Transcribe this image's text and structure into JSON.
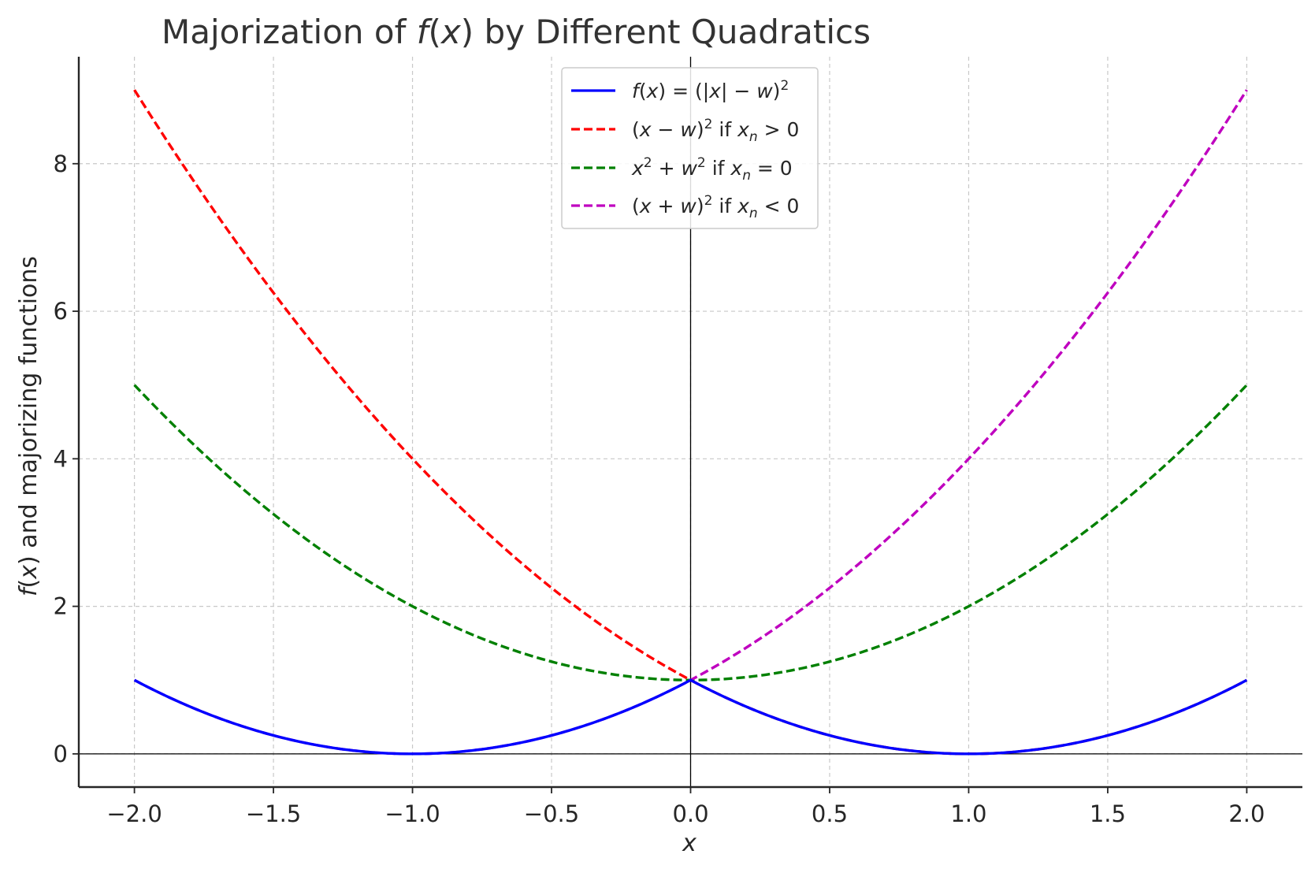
{
  "chart_data": {
    "type": "line",
    "title": "Majorization of f(x) by Different Quadratics",
    "xlabel": "x",
    "ylabel": "f(x) and majorizing functions",
    "xlim": [
      -2.2,
      2.2
    ],
    "ylim": [
      -0.45,
      9.45
    ],
    "x_ticks": [
      -2.0,
      -1.5,
      -1.0,
      -0.5,
      0.0,
      0.5,
      1.0,
      1.5,
      2.0
    ],
    "x_tick_labels": [
      "−2.0",
      "−1.5",
      "−1.0",
      "−0.5",
      "0.0",
      "0.5",
      "1.0",
      "1.5",
      "2.0"
    ],
    "y_ticks": [
      0,
      2,
      4,
      6,
      8
    ],
    "y_tick_labels": [
      "0",
      "2",
      "4",
      "6",
      "8"
    ],
    "grid": true,
    "legend_position": "top-center",
    "x": [
      -2.0,
      -1.75,
      -1.5,
      -1.25,
      -1.0,
      -0.75,
      -0.5,
      -0.25,
      0.0,
      0.25,
      0.5,
      0.75,
      1.0,
      1.25,
      1.5,
      1.75,
      2.0
    ],
    "series": [
      {
        "name": "f(x) = (|x| − w)²",
        "color": "#0000ff",
        "style": "solid",
        "values": [
          1.0,
          0.5625,
          0.25,
          0.0625,
          0.0,
          0.0625,
          0.25,
          0.5625,
          1.0,
          0.5625,
          0.25,
          0.0625,
          0.0,
          0.0625,
          0.25,
          0.5625,
          1.0
        ]
      },
      {
        "name": "(x − w)² if x_n > 0",
        "color": "#ff0000",
        "style": "dashed",
        "values": [
          9.0,
          7.5625,
          6.25,
          5.0625,
          4.0,
          3.0625,
          2.25,
          1.5625,
          1.0,
          0.5625,
          0.25,
          0.0625,
          0.0,
          0.0625,
          0.25,
          0.5625,
          1.0
        ]
      },
      {
        "name": "x² + w² if x_n = 0",
        "color": "#008000",
        "style": "dashed",
        "values": [
          5.0,
          4.0625,
          3.25,
          2.5625,
          2.0,
          1.5625,
          1.25,
          1.0625,
          1.0,
          1.0625,
          1.25,
          1.5625,
          2.0,
          2.5625,
          3.25,
          4.0625,
          5.0
        ]
      },
      {
        "name": "(x + w)² if x_n < 0",
        "color": "#bf00bf",
        "style": "dashed",
        "values": [
          1.0,
          0.5625,
          0.25,
          0.0625,
          0.0,
          0.0625,
          0.25,
          0.5625,
          1.0,
          1.5625,
          2.25,
          3.0625,
          4.0,
          5.0625,
          6.25,
          7.5625,
          9.0
        ]
      }
    ]
  }
}
